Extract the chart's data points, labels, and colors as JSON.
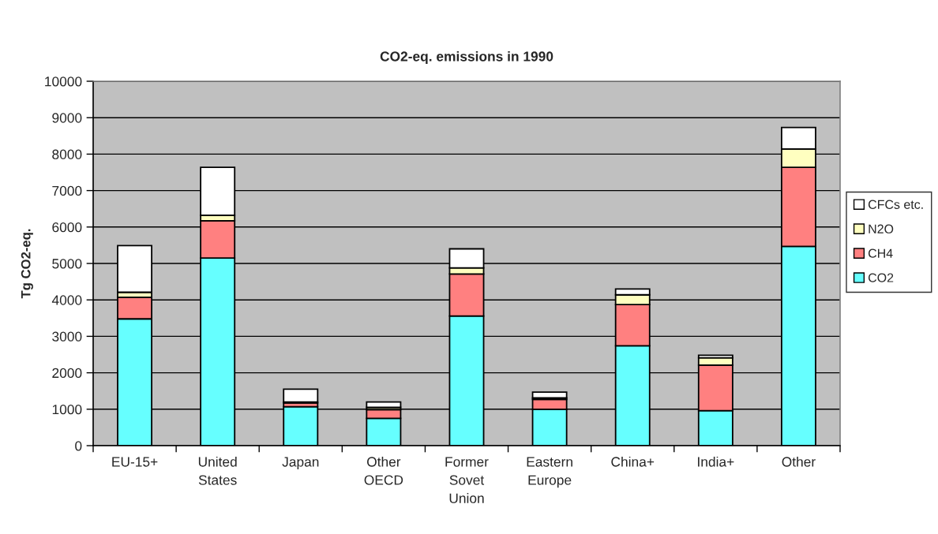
{
  "chart_data": {
    "type": "bar",
    "title": "CO2-eq. emissions in 1990",
    "ylabel": "Tg CO2-eq.",
    "categories": [
      "EU-15+",
      "United States",
      "Japan",
      "Other OECD",
      "Former Sovet Union",
      "Eastern Europe",
      "China+",
      "India+",
      "Other"
    ],
    "stacked": true,
    "series": [
      {
        "name": "CO2",
        "color": "#66ffff",
        "values": [
          3480,
          5150,
          1070,
          750,
          3560,
          1000,
          2740,
          960,
          5470
        ]
      },
      {
        "name": "CH4",
        "color": "#ff8080",
        "values": [
          590,
          1020,
          100,
          240,
          1150,
          270,
          1130,
          1250,
          2170
        ]
      },
      {
        "name": "N2O",
        "color": "#ffffc0",
        "values": [
          140,
          150,
          30,
          60,
          170,
          40,
          270,
          200,
          500
        ]
      },
      {
        "name": "CFCs etc.",
        "color": "#ffffff",
        "values": [
          1280,
          1320,
          350,
          150,
          520,
          160,
          160,
          70,
          590
        ]
      }
    ],
    "ylim": [
      0,
      10000
    ],
    "yticks": [
      0,
      1000,
      2000,
      3000,
      4000,
      5000,
      6000,
      7000,
      8000,
      9000,
      10000
    ],
    "grid": "y",
    "legend": "right"
  }
}
